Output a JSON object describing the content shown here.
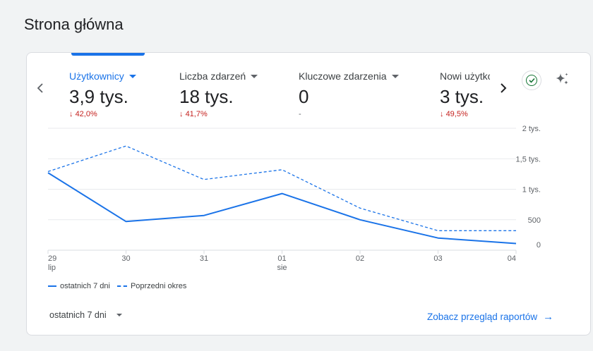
{
  "page": {
    "title": "Strona główna"
  },
  "metrics": [
    {
      "label": "Użytkownicy",
      "value": "3,9 tys.",
      "change": "42,0%",
      "direction": "down"
    },
    {
      "label": "Liczba zdarzeń",
      "value": "18 tys.",
      "change": "41,7%",
      "direction": "down"
    },
    {
      "label": "Kluczowe zdarzenia",
      "value": "0",
      "change": "-",
      "direction": "none"
    },
    {
      "label": "Nowi użytkownicy",
      "value": "3 tys.",
      "change": "49,5%",
      "direction": "down"
    }
  ],
  "chart_data": {
    "type": "line",
    "x": [
      "29",
      "30",
      "31",
      "01",
      "02",
      "03",
      "04"
    ],
    "x_sublabels": [
      "lip",
      "",
      "",
      "sie",
      "",
      "",
      ""
    ],
    "y_ticks": [
      "0",
      "500",
      "1 tys.",
      "1,5 tys.",
      "2 tys."
    ],
    "ylim": [
      0,
      2000
    ],
    "grid": true,
    "legend_position": "bottom-left",
    "series": [
      {
        "name": "ostatnich 7 dni",
        "style": "solid",
        "values": [
          1270,
          470,
          570,
          930,
          500,
          200,
          110
        ]
      },
      {
        "name": "Poprzedni okres",
        "style": "dashed",
        "values": [
          1290,
          1710,
          1160,
          1320,
          690,
          320,
          320
        ]
      }
    ]
  },
  "footer": {
    "period_label": "ostatnich 7 dni",
    "report_link": "Zobacz przegląd raportów"
  },
  "icons": {
    "prev": "chevron-left-icon",
    "next": "chevron-right-icon",
    "check": "check-circle-icon",
    "insights": "sparkle-icon",
    "arrow": "arrow-right-icon"
  },
  "colors": {
    "accent": "#1a73e8",
    "negative": "#c5221f",
    "positive_check": "#137333",
    "background": "#f1f3f4"
  }
}
